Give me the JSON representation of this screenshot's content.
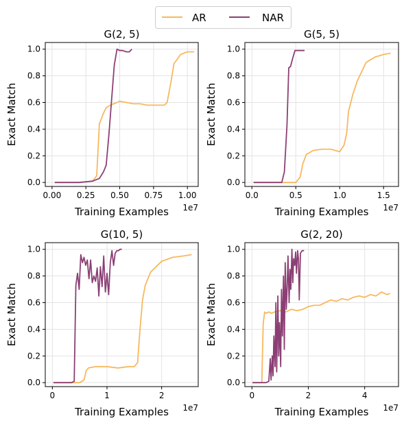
{
  "colors": {
    "AR": "#f7b85e",
    "NAR": "#8b3f74"
  },
  "legend": {
    "placement": "top-center",
    "entries": [
      "AR",
      "NAR"
    ]
  },
  "chart_data": [
    {
      "type": "line",
      "title": "G(2, 5)",
      "xlabel": "Training Examples",
      "ylabel": "Exact Match",
      "x_offset_label": "1e7",
      "xlim": [
        -0.05,
        1.08
      ],
      "ylim": [
        -0.03,
        1.05
      ],
      "xticks": [
        0.0,
        0.25,
        0.5,
        0.75,
        1.0
      ],
      "xticklabels": [
        "0.00",
        "0.25",
        "0.50",
        "0.75",
        "1.00"
      ],
      "yticks": [
        0.0,
        0.2,
        0.4,
        0.6,
        0.8,
        1.0
      ],
      "yticklabels": [
        "0.0",
        "0.2",
        "0.4",
        "0.6",
        "0.8",
        "1.0"
      ],
      "grid": true,
      "series": [
        {
          "name": "AR",
          "x": [
            0.02,
            0.1,
            0.2,
            0.3,
            0.33,
            0.35,
            0.38,
            0.4,
            0.43,
            0.48,
            0.5,
            0.55,
            0.6,
            0.65,
            0.7,
            0.75,
            0.8,
            0.83,
            0.85,
            0.88,
            0.9,
            0.95,
            1.0,
            1.05
          ],
          "y": [
            0.0,
            0.0,
            0.0,
            0.01,
            0.05,
            0.44,
            0.52,
            0.56,
            0.58,
            0.6,
            0.61,
            0.6,
            0.59,
            0.59,
            0.58,
            0.58,
            0.58,
            0.58,
            0.6,
            0.76,
            0.89,
            0.96,
            0.98,
            0.98
          ]
        },
        {
          "name": "NAR",
          "x": [
            0.02,
            0.1,
            0.2,
            0.3,
            0.35,
            0.38,
            0.4,
            0.42,
            0.44,
            0.46,
            0.48,
            0.5,
            0.52,
            0.55,
            0.57,
            0.59
          ],
          "y": [
            0.0,
            0.0,
            0.0,
            0.01,
            0.03,
            0.08,
            0.13,
            0.36,
            0.62,
            0.88,
            1.0,
            0.99,
            0.99,
            0.98,
            0.98,
            1.0
          ]
        }
      ]
    },
    {
      "type": "line",
      "title": "G(5, 5)",
      "xlabel": "Training Examples",
      "ylabel": "Exact Match",
      "x_offset_label": "1e7",
      "xlim": [
        -0.08,
        1.67
      ],
      "ylim": [
        -0.03,
        1.05
      ],
      "xticks": [
        0.0,
        0.5,
        1.0,
        1.5
      ],
      "xticklabels": [
        "0.0",
        "0.5",
        "1.0",
        "1.5"
      ],
      "yticks": [
        0.0,
        0.2,
        0.4,
        0.6,
        0.8,
        1.0
      ],
      "yticklabels": [
        "0.0",
        "0.2",
        "0.4",
        "0.6",
        "0.8",
        "1.0"
      ],
      "grid": true,
      "series": [
        {
          "name": "AR",
          "x": [
            0.02,
            0.2,
            0.4,
            0.5,
            0.55,
            0.58,
            0.62,
            0.7,
            0.8,
            0.9,
            0.95,
            1.0,
            1.05,
            1.08,
            1.1,
            1.15,
            1.2,
            1.3,
            1.4,
            1.5,
            1.58
          ],
          "y": [
            0.0,
            0.0,
            0.0,
            0.0,
            0.04,
            0.14,
            0.21,
            0.24,
            0.25,
            0.25,
            0.24,
            0.23,
            0.28,
            0.37,
            0.53,
            0.66,
            0.76,
            0.9,
            0.94,
            0.96,
            0.97
          ]
        },
        {
          "name": "NAR",
          "x": [
            0.02,
            0.2,
            0.3,
            0.34,
            0.37,
            0.4,
            0.42,
            0.44,
            0.46,
            0.49,
            0.52,
            0.56,
            0.6
          ],
          "y": [
            0.0,
            0.0,
            0.0,
            0.0,
            0.08,
            0.43,
            0.86,
            0.87,
            0.92,
            0.99,
            0.99,
            0.99,
            0.99
          ]
        }
      ]
    },
    {
      "type": "line",
      "title": "G(10, 5)",
      "xlabel": "Training Examples",
      "ylabel": "Exact Match",
      "x_offset_label": "1e7",
      "xlim": [
        -0.13,
        2.67
      ],
      "ylim": [
        -0.03,
        1.05
      ],
      "xticks": [
        0,
        1,
        2
      ],
      "xticklabels": [
        "0",
        "1",
        "2"
      ],
      "yticks": [
        0.0,
        0.2,
        0.4,
        0.6,
        0.8,
        1.0
      ],
      "yticklabels": [
        "0.0",
        "0.2",
        "0.4",
        "0.6",
        "0.8",
        "1.0"
      ],
      "grid": true,
      "series": [
        {
          "name": "AR",
          "x": [
            0.02,
            0.3,
            0.5,
            0.58,
            0.62,
            0.66,
            0.8,
            1.0,
            1.2,
            1.4,
            1.5,
            1.56,
            1.6,
            1.65,
            1.7,
            1.8,
            2.0,
            2.2,
            2.4,
            2.55
          ],
          "y": [
            0.0,
            0.0,
            0.0,
            0.02,
            0.09,
            0.11,
            0.12,
            0.12,
            0.11,
            0.12,
            0.12,
            0.15,
            0.38,
            0.62,
            0.73,
            0.83,
            0.91,
            0.94,
            0.95,
            0.96
          ]
        },
        {
          "name": "NAR",
          "x": [
            0.02,
            0.2,
            0.35,
            0.4,
            0.43,
            0.46,
            0.49,
            0.52,
            0.55,
            0.58,
            0.61,
            0.64,
            0.67,
            0.7,
            0.73,
            0.76,
            0.79,
            0.82,
            0.85,
            0.88,
            0.91,
            0.94,
            0.97,
            1.0,
            1.03,
            1.06,
            1.09,
            1.12,
            1.15,
            1.18,
            1.21,
            1.24,
            1.27
          ],
          "y": [
            0.0,
            0.0,
            0.0,
            0.01,
            0.73,
            0.82,
            0.7,
            0.96,
            0.9,
            0.94,
            0.88,
            0.92,
            0.78,
            0.92,
            0.75,
            0.8,
            0.76,
            0.86,
            0.65,
            0.87,
            0.72,
            0.95,
            0.68,
            0.82,
            0.66,
            0.9,
            0.99,
            0.88,
            0.97,
            0.99,
            0.99,
            1.0,
            1.0
          ]
        }
      ]
    },
    {
      "type": "line",
      "title": "G(2, 20)",
      "xlabel": "Training Examples",
      "ylabel": "Exact Match",
      "x_offset_label": "1e7",
      "xlim": [
        -0.25,
        5.2
      ],
      "ylim": [
        -0.03,
        1.05
      ],
      "xticks": [
        0,
        2,
        4
      ],
      "xticklabels": [
        "0",
        "2",
        "4"
      ],
      "yticks": [
        0.0,
        0.2,
        0.4,
        0.6,
        0.8,
        1.0
      ],
      "yticklabels": [
        "0.0",
        "0.2",
        "0.4",
        "0.6",
        "0.8",
        "1.0"
      ],
      "grid": true,
      "series": [
        {
          "name": "AR",
          "x": [
            0.02,
            0.2,
            0.35,
            0.4,
            0.45,
            0.5,
            0.6,
            0.7,
            0.8,
            1.0,
            1.2,
            1.4,
            1.6,
            1.8,
            2.0,
            2.2,
            2.4,
            2.6,
            2.8,
            3.0,
            3.2,
            3.4,
            3.6,
            3.8,
            4.0,
            4.2,
            4.4,
            4.6,
            4.7,
            4.8,
            4.9
          ],
          "y": [
            0.0,
            0.0,
            0.0,
            0.44,
            0.53,
            0.52,
            0.53,
            0.52,
            0.53,
            0.54,
            0.53,
            0.55,
            0.54,
            0.55,
            0.57,
            0.58,
            0.58,
            0.6,
            0.62,
            0.61,
            0.63,
            0.62,
            0.64,
            0.65,
            0.64,
            0.66,
            0.65,
            0.68,
            0.67,
            0.66,
            0.67
          ]
        },
        {
          "name": "NAR",
          "x": [
            0.02,
            0.3,
            0.5,
            0.6,
            0.65,
            0.68,
            0.72,
            0.75,
            0.78,
            0.82,
            0.85,
            0.88,
            0.92,
            0.95,
            0.98,
            1.02,
            1.05,
            1.08,
            1.12,
            1.15,
            1.18,
            1.22,
            1.25,
            1.28,
            1.32,
            1.35,
            1.38,
            1.42,
            1.45,
            1.48,
            1.52,
            1.55,
            1.58,
            1.62,
            1.65,
            1.68,
            1.72,
            1.75,
            1.78,
            1.82,
            1.85
          ],
          "y": [
            0.0,
            0.0,
            0.0,
            0.01,
            0.18,
            0.02,
            0.2,
            0.05,
            0.35,
            0.12,
            0.6,
            0.08,
            0.65,
            0.2,
            0.45,
            0.12,
            0.7,
            0.35,
            0.8,
            0.25,
            0.9,
            0.55,
            0.72,
            0.95,
            0.6,
            0.85,
            0.7,
            1.0,
            0.75,
            0.93,
            0.88,
            0.98,
            0.82,
            0.99,
            0.93,
            0.62,
            0.97,
            0.98,
            0.99,
            0.99,
            0.99
          ]
        }
      ]
    }
  ]
}
